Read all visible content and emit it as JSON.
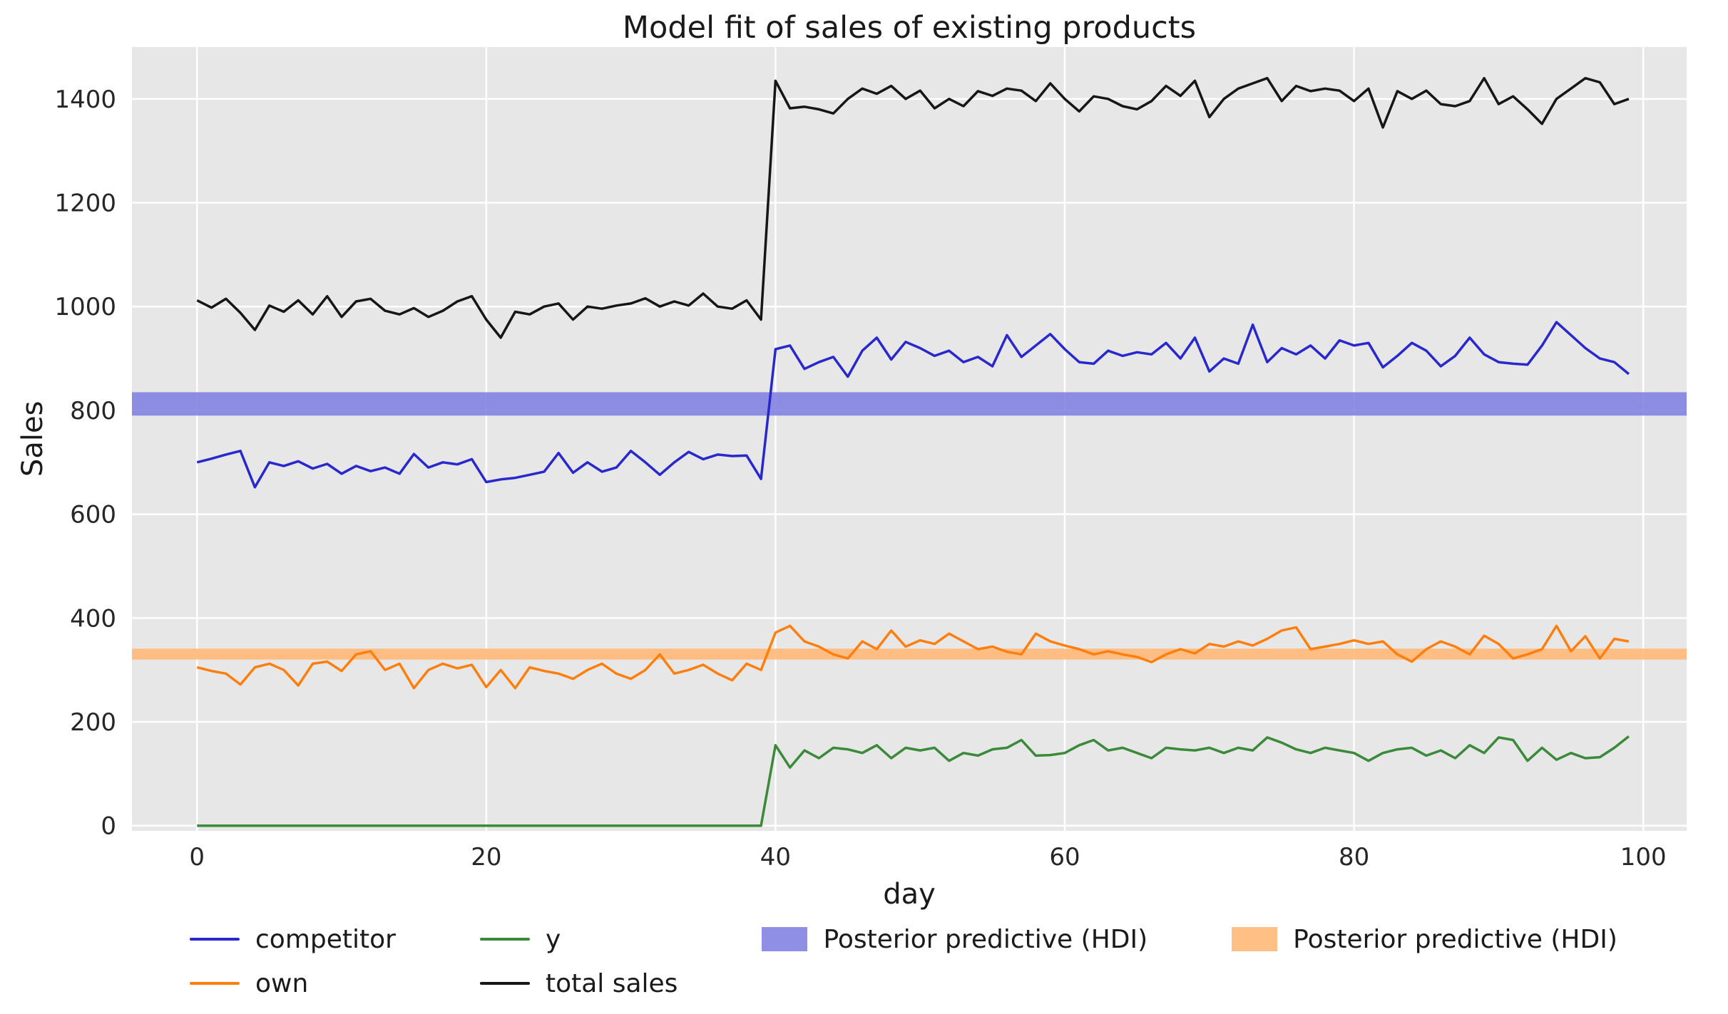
{
  "chart_data": {
    "type": "line",
    "title": "Model fit of sales of existing products",
    "xlabel": "day",
    "ylabel": "Sales",
    "xlim": [
      -4.5,
      103
    ],
    "ylim": [
      -10,
      1500
    ],
    "xticks": [
      0,
      20,
      40,
      60,
      80,
      100
    ],
    "yticks": [
      0,
      200,
      400,
      600,
      800,
      1000,
      1200,
      1400
    ],
    "grid": true,
    "legend_position": "bottom",
    "plot_bg": "#e7e7e7",
    "grid_color": "#ffffff",
    "x": [
      0,
      1,
      2,
      3,
      4,
      5,
      6,
      7,
      8,
      9,
      10,
      11,
      12,
      13,
      14,
      15,
      16,
      17,
      18,
      19,
      20,
      21,
      22,
      23,
      24,
      25,
      26,
      27,
      28,
      29,
      30,
      31,
      32,
      33,
      34,
      35,
      36,
      37,
      38,
      39,
      40,
      41,
      42,
      43,
      44,
      45,
      46,
      47,
      48,
      49,
      50,
      51,
      52,
      53,
      54,
      55,
      56,
      57,
      58,
      59,
      60,
      61,
      62,
      63,
      64,
      65,
      66,
      67,
      68,
      69,
      70,
      71,
      72,
      73,
      74,
      75,
      76,
      77,
      78,
      79,
      80,
      81,
      82,
      83,
      84,
      85,
      86,
      87,
      88,
      89,
      90,
      91,
      92,
      93,
      94,
      95,
      96,
      97,
      98,
      99
    ],
    "series": [
      {
        "name": "competitor",
        "color": "#2828cc",
        "values": [
          700,
          707,
          715,
          722,
          652,
          700,
          693,
          702,
          688,
          697,
          678,
          693,
          683,
          690,
          678,
          716,
          690,
          700,
          696,
          706,
          662,
          667,
          670,
          676,
          682,
          718,
          680,
          700,
          682,
          690,
          722,
          700,
          676,
          700,
          720,
          706,
          715,
          712,
          713,
          668,
          918,
          925,
          880,
          893,
          903,
          865,
          915,
          940,
          898,
          932,
          920,
          905,
          915,
          893,
          903,
          885,
          945,
          903,
          925,
          947,
          918,
          893,
          890,
          915,
          905,
          912,
          908,
          930,
          900,
          940,
          875,
          900,
          890,
          965,
          893,
          920,
          908,
          925,
          900,
          935,
          925,
          930,
          883,
          905,
          930,
          915,
          885,
          905,
          940,
          908,
          893,
          890,
          888,
          925,
          970,
          945,
          920,
          900,
          893,
          870
        ]
      },
      {
        "name": "own",
        "color": "#ff7f0e",
        "values": [
          305,
          298,
          293,
          272,
          305,
          312,
          300,
          270,
          312,
          316,
          298,
          330,
          336,
          300,
          312,
          265,
          300,
          312,
          303,
          310,
          267,
          300,
          265,
          305,
          298,
          293,
          283,
          300,
          312,
          293,
          283,
          300,
          330,
          293,
          300,
          310,
          293,
          280,
          312,
          300,
          372,
          385,
          355,
          345,
          330,
          322,
          355,
          340,
          376,
          345,
          357,
          350,
          370,
          355,
          340,
          345,
          335,
          330,
          370,
          355,
          347,
          340,
          330,
          336,
          330,
          325,
          315,
          330,
          340,
          332,
          350,
          345,
          355,
          347,
          360,
          376,
          382,
          340,
          345,
          350,
          357,
          350,
          355,
          330,
          316,
          340,
          355,
          345,
          330,
          366,
          350,
          322,
          330,
          340,
          385,
          336,
          365,
          322,
          360,
          355
        ]
      },
      {
        "name": "y",
        "color": "#3a8a3a",
        "values": [
          0,
          0,
          0,
          0,
          0,
          0,
          0,
          0,
          0,
          0,
          0,
          0,
          0,
          0,
          0,
          0,
          0,
          0,
          0,
          0,
          0,
          0,
          0,
          0,
          0,
          0,
          0,
          0,
          0,
          0,
          0,
          0,
          0,
          0,
          0,
          0,
          0,
          0,
          0,
          0,
          155,
          112,
          145,
          130,
          150,
          147,
          140,
          155,
          130,
          150,
          145,
          150,
          125,
          140,
          135,
          147,
          150,
          165,
          135,
          136,
          140,
          155,
          165,
          145,
          150,
          140,
          130,
          150,
          147,
          145,
          150,
          140,
          150,
          145,
          170,
          160,
          147,
          140,
          150,
          145,
          140,
          125,
          140,
          147,
          150,
          135,
          145,
          130,
          155,
          140,
          170,
          165,
          125,
          150,
          127,
          140,
          130,
          132,
          150,
          172
        ]
      },
      {
        "name": "total sales",
        "color": "#161616",
        "values": [
          1012,
          998,
          1015,
          988,
          955,
          1002,
          990,
          1012,
          985,
          1020,
          980,
          1010,
          1015,
          992,
          985,
          997,
          980,
          992,
          1010,
          1020,
          975,
          940,
          990,
          985,
          1000,
          1006,
          975,
          1000,
          996,
          1002,
          1006,
          1016,
          1000,
          1010,
          1002,
          1025,
          1000,
          996,
          1012,
          975,
          1435,
          1382,
          1385,
          1380,
          1372,
          1400,
          1420,
          1410,
          1425,
          1400,
          1416,
          1382,
          1400,
          1386,
          1415,
          1406,
          1420,
          1416,
          1396,
          1430,
          1400,
          1376,
          1405,
          1400,
          1386,
          1380,
          1396,
          1425,
          1406,
          1435,
          1365,
          1400,
          1420,
          1430,
          1440,
          1396,
          1425,
          1415,
          1420,
          1416,
          1396,
          1420,
          1345,
          1415,
          1400,
          1416,
          1390,
          1386,
          1396,
          1440,
          1390,
          1405,
          1380,
          1352,
          1400,
          1420,
          1440,
          1432,
          1390,
          1400
        ]
      }
    ],
    "bands": [
      {
        "name": "Posterior predictive (HDI)",
        "color": "#7b7be0",
        "opacity": 0.85,
        "lo": 790,
        "hi": 835
      },
      {
        "name": "Posterior predictive (HDI)",
        "color": "#ffb878",
        "opacity": 0.9,
        "lo": 320,
        "hi": 341
      }
    ],
    "colors": {
      "figure_bg": "#ffffff",
      "tick_text": "#262626"
    }
  }
}
